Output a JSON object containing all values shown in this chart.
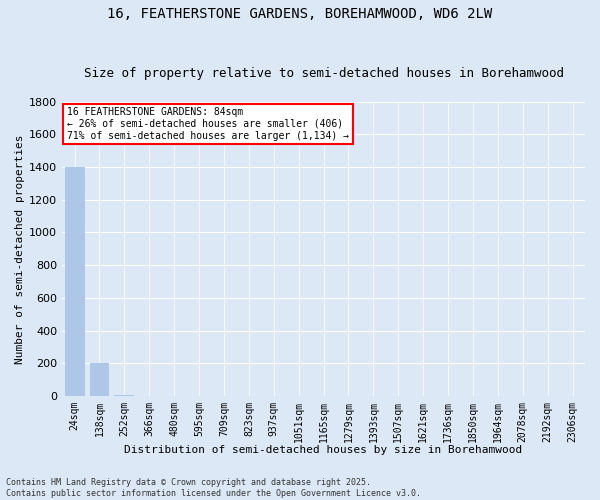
{
  "title_line1": "16, FEATHERSTONE GARDENS, BOREHAMWOOD, WD6 2LW",
  "title_line2": "Size of property relative to semi-detached houses in Borehamwood",
  "xlabel": "Distribution of semi-detached houses by size in Borehamwood",
  "ylabel": "Number of semi-detached properties",
  "categories": [
    "24sqm",
    "138sqm",
    "252sqm",
    "366sqm",
    "480sqm",
    "595sqm",
    "709sqm",
    "823sqm",
    "937sqm",
    "1051sqm",
    "1165sqm",
    "1279sqm",
    "1393sqm",
    "1507sqm",
    "1621sqm",
    "1736sqm",
    "1850sqm",
    "1964sqm",
    "2078sqm",
    "2192sqm",
    "2306sqm"
  ],
  "values": [
    1400,
    200,
    10,
    2,
    1,
    1,
    1,
    1,
    1,
    1,
    1,
    1,
    1,
    1,
    1,
    1,
    1,
    1,
    1,
    1,
    1
  ],
  "bar_color": "#aec6e8",
  "ylim": [
    0,
    1800
  ],
  "yticks": [
    0,
    200,
    400,
    600,
    800,
    1000,
    1200,
    1400,
    1600,
    1800
  ],
  "annotation_text": "16 FEATHERSTONE GARDENS: 84sqm\n← 26% of semi-detached houses are smaller (406)\n71% of semi-detached houses are larger (1,134) →",
  "footer_text": "Contains HM Land Registry data © Crown copyright and database right 2025.\nContains public sector information licensed under the Open Government Licence v3.0.",
  "bg_color": "#dce8f5",
  "plot_bg_color": "#dce8f5",
  "grid_color": "#ffffff",
  "title_fontsize": 10,
  "subtitle_fontsize": 9,
  "tick_fontsize": 7,
  "ylabel_fontsize": 8,
  "xlabel_fontsize": 8,
  "annotation_fontsize": 7,
  "footer_fontsize": 6
}
